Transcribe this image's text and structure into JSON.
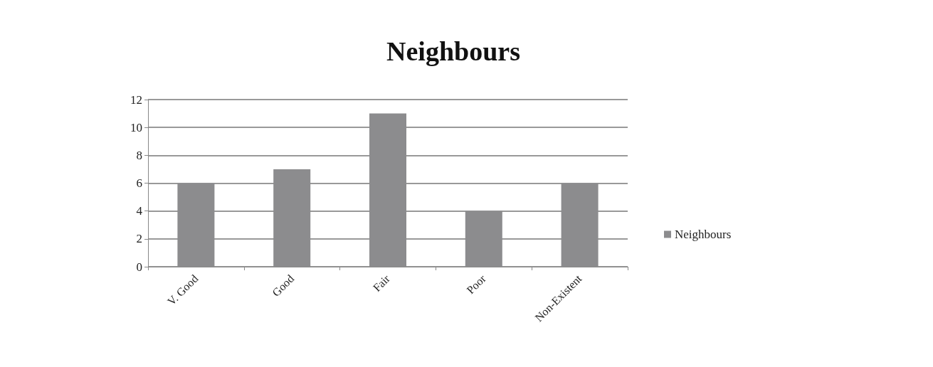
{
  "chart_data": {
    "type": "bar",
    "title": "Neighbours",
    "categories": [
      "V. Good",
      "Good",
      "Fair",
      "Poor",
      "Non-Existent"
    ],
    "series": [
      {
        "name": "Neighbours",
        "color": "#8c8c8e",
        "values": [
          6,
          7,
          11,
          4,
          6
        ]
      }
    ],
    "ylim": [
      0,
      12
    ],
    "yticks": [
      0,
      2,
      4,
      6,
      8,
      10,
      12
    ],
    "grid": "y",
    "legend": "right"
  }
}
